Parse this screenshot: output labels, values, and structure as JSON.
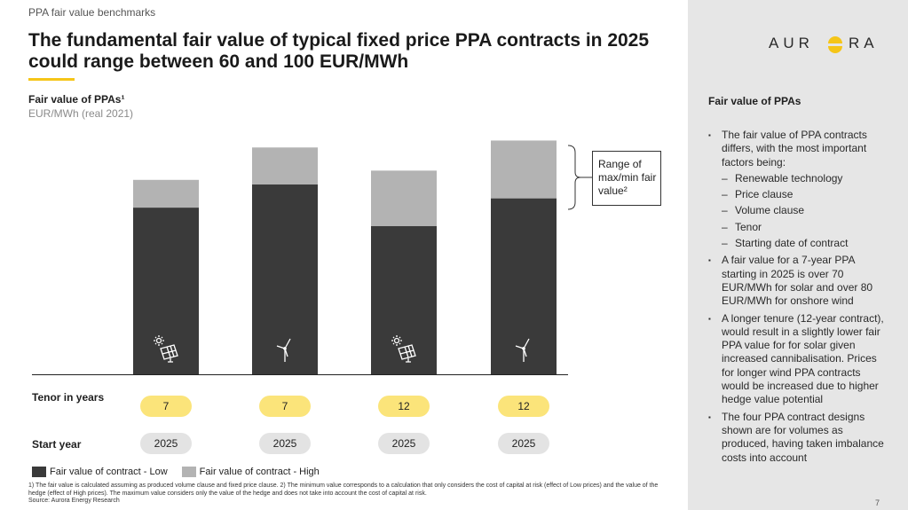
{
  "header": {
    "kicker": "PPA fair value benchmarks",
    "title": "The fundamental fair value of typical fixed price PPA contracts in 2025 could range between 60 and 100 EUR/MWh",
    "logo_text": "AURORA"
  },
  "chart_data": {
    "type": "bar",
    "title": "Fair value of PPAs¹",
    "ylabel": "EUR/MWh (real 2021)",
    "categories": [
      "Solar 7y 2025",
      "Onshore wind 7y 2025",
      "Solar 12y 2025",
      "Onshore wind 12y 2025"
    ],
    "technology_icons": [
      "solar-panel-icon",
      "wind-turbine-icon",
      "solar-panel-icon",
      "wind-turbine-icon"
    ],
    "series": [
      {
        "name": "Fair value of contract - Low",
        "color": "#3a3a3a",
        "values": [
          72,
          82,
          64,
          76
        ]
      },
      {
        "name": "Fair value of contract - High",
        "color": "#b3b3b3",
        "values": [
          84,
          98,
          88,
          101
        ]
      }
    ],
    "ylim": [
      0,
      105
    ],
    "stacked_range": true,
    "tenor_label": "Tenor in years",
    "tenor": [
      "7",
      "7",
      "12",
      "12"
    ],
    "start_year_label": "Start year",
    "start_year": [
      "2025",
      "2025",
      "2025",
      "2025"
    ],
    "range_annotation": "Range of max/min fair value²"
  },
  "colors": {
    "accent": "#f5c518",
    "pill_yellow": "#fbe47a",
    "pill_grey": "#e3e3e3",
    "sidebar": "#e6e6e6"
  },
  "footnote": "1) The fair value is calculated assuming as produced volume clause and fixed price clause. 2) The minimum value corresponds to a calculation that only considers the cost of capital at risk (effect of Low prices) and the value of the hedge (effect of High prices). The maximum value considers only the value of the hedge and does not take into account the cost of capital at risk.",
  "source": "Source: Aurora Energy Research",
  "sidebar": {
    "heading": "Fair value of PPAs",
    "b1": "The fair value of PPA contracts differs, with the most important factors being:",
    "b1_sub": [
      "Renewable technology",
      "Price clause",
      "Volume clause",
      "Tenor",
      "Starting date of contract"
    ],
    "b2": "A fair value for a 7-year PPA starting in 2025 is over 70 EUR/MWh for solar and over 80 EUR/MWh for onshore wind",
    "b3": "A longer tenure (12-year contract), would result in a slightly lower fair PPA value for for solar given increased cannibalisation. Prices for longer wind PPA contracts would be increased due to higher hedge value potential",
    "b4": "The four PPA contract designs shown are for volumes as produced, having taken imbalance costs into account"
  },
  "page_number": "7"
}
